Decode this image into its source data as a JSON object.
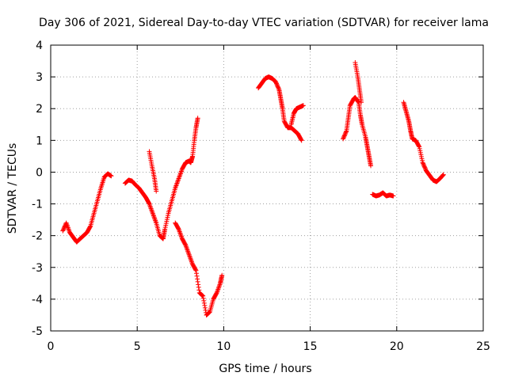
{
  "chart_data": {
    "type": "scatter",
    "title": "Day 306 of 2021, Sidereal Day-to-day VTEC variation (SDTVAR) for receiver lama",
    "xlabel": "GPS time / hours",
    "ylabel": "SDTVAR / TECUs",
    "xlim": [
      0,
      25
    ],
    "ylim": [
      -5,
      4
    ],
    "xticks": [
      0,
      5,
      10,
      15,
      20,
      25
    ],
    "yticks": [
      -5,
      -4,
      -3,
      -2,
      -1,
      0,
      1,
      2,
      3,
      4
    ],
    "grid": true,
    "marker": "+",
    "color": "#ff0000",
    "segments": [
      [
        [
          0.7,
          -1.85
        ],
        [
          0.9,
          -1.6
        ],
        [
          1.1,
          -1.9
        ],
        [
          1.3,
          -2.05
        ],
        [
          1.5,
          -2.2
        ],
        [
          1.7,
          -2.1
        ],
        [
          1.9,
          -2.0
        ],
        [
          2.1,
          -1.9
        ],
        [
          2.3,
          -1.7
        ],
        [
          2.5,
          -1.3
        ],
        [
          2.7,
          -0.9
        ],
        [
          2.9,
          -0.5
        ],
        [
          3.1,
          -0.15
        ],
        [
          3.3,
          -0.05
        ],
        [
          3.5,
          -0.12
        ]
      ],
      [
        [
          4.3,
          -0.35
        ],
        [
          4.5,
          -0.25
        ],
        [
          4.7,
          -0.28
        ],
        [
          4.9,
          -0.4
        ],
        [
          5.1,
          -0.5
        ],
        [
          5.3,
          -0.65
        ],
        [
          5.5,
          -0.8
        ],
        [
          5.7,
          -1.0
        ],
        [
          5.9,
          -1.3
        ],
        [
          6.1,
          -1.6
        ],
        [
          6.3,
          -2.0
        ],
        [
          6.5,
          -2.1
        ],
        [
          6.6,
          -1.8
        ],
        [
          6.8,
          -1.3
        ],
        [
          7.0,
          -0.9
        ],
        [
          7.2,
          -0.5
        ],
        [
          7.4,
          -0.2
        ],
        [
          7.6,
          0.1
        ],
        [
          7.8,
          0.3
        ],
        [
          8.0,
          0.35
        ],
        [
          8.1,
          0.3
        ],
        [
          8.2,
          0.5
        ],
        [
          8.3,
          1.0
        ],
        [
          8.4,
          1.4
        ],
        [
          8.5,
          1.7
        ]
      ],
      [
        [
          5.7,
          0.65
        ],
        [
          5.85,
          0.2
        ],
        [
          6.0,
          -0.2
        ],
        [
          6.1,
          -0.6
        ]
      ],
      [
        [
          7.2,
          -1.6
        ],
        [
          7.4,
          -1.8
        ],
        [
          7.6,
          -2.1
        ],
        [
          7.8,
          -2.3
        ],
        [
          8.0,
          -2.6
        ],
        [
          8.2,
          -2.9
        ],
        [
          8.4,
          -3.1
        ],
        [
          8.6,
          -3.8
        ],
        [
          8.8,
          -3.9
        ],
        [
          9.0,
          -4.5
        ],
        [
          9.2,
          -4.4
        ],
        [
          9.4,
          -4.0
        ],
        [
          9.6,
          -3.8
        ],
        [
          9.8,
          -3.5
        ],
        [
          9.9,
          -3.25
        ]
      ],
      [
        [
          12.0,
          2.65
        ],
        [
          12.2,
          2.8
        ],
        [
          12.4,
          2.95
        ],
        [
          12.6,
          3.0
        ],
        [
          12.8,
          2.95
        ],
        [
          13.0,
          2.85
        ],
        [
          13.2,
          2.6
        ],
        [
          13.3,
          2.3
        ],
        [
          13.4,
          2.0
        ],
        [
          13.5,
          1.6
        ],
        [
          13.7,
          1.4
        ],
        [
          13.9,
          1.4
        ],
        [
          14.1,
          1.3
        ],
        [
          14.3,
          1.2
        ],
        [
          14.5,
          1.0
        ]
      ],
      [
        [
          13.9,
          1.5
        ],
        [
          14.05,
          1.85
        ],
        [
          14.2,
          2.0
        ],
        [
          14.4,
          2.05
        ],
        [
          14.6,
          2.1
        ]
      ],
      [
        [
          16.9,
          1.05
        ],
        [
          17.1,
          1.3
        ],
        [
          17.2,
          1.7
        ],
        [
          17.3,
          2.1
        ],
        [
          17.5,
          2.3
        ],
        [
          17.6,
          2.35
        ],
        [
          17.8,
          2.2
        ],
        [
          17.9,
          1.8
        ],
        [
          18.0,
          1.5
        ],
        [
          18.2,
          1.1
        ],
        [
          18.3,
          0.8
        ],
        [
          18.4,
          0.5
        ],
        [
          18.5,
          0.2
        ]
      ],
      [
        [
          17.6,
          3.45
        ],
        [
          17.75,
          3.0
        ],
        [
          17.85,
          2.6
        ],
        [
          17.95,
          2.2
        ]
      ],
      [
        [
          18.6,
          -0.7
        ],
        [
          18.8,
          -0.75
        ],
        [
          19.0,
          -0.72
        ],
        [
          19.2,
          -0.65
        ],
        [
          19.4,
          -0.75
        ],
        [
          19.6,
          -0.72
        ],
        [
          19.8,
          -0.75
        ]
      ],
      [
        [
          20.4,
          2.2
        ],
        [
          20.55,
          1.9
        ],
        [
          20.7,
          1.6
        ],
        [
          20.8,
          1.3
        ],
        [
          20.9,
          1.05
        ],
        [
          21.1,
          1.0
        ],
        [
          21.3,
          0.8
        ],
        [
          21.5,
          0.3
        ],
        [
          21.7,
          0.05
        ],
        [
          21.9,
          -0.1
        ],
        [
          22.1,
          -0.25
        ],
        [
          22.3,
          -0.3
        ],
        [
          22.5,
          -0.2
        ],
        [
          22.7,
          -0.08
        ]
      ]
    ]
  }
}
